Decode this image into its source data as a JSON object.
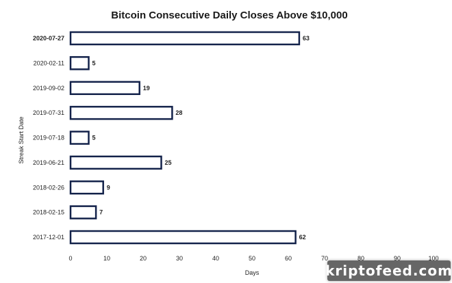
{
  "chart_data": {
    "type": "bar",
    "orientation": "horizontal",
    "title": "Bitcoin Consecutive Daily Closes Above $10,000",
    "xlabel": "Days",
    "ylabel": "Streak Start Date",
    "xlim": [
      0,
      100
    ],
    "xticks": [
      0,
      10,
      20,
      30,
      40,
      50,
      60,
      70,
      80,
      90,
      100
    ],
    "categories": [
      "2020-07-27",
      "2020-02-11",
      "2019-09-02",
      "2019-07-31",
      "2019-07-18",
      "2019-06-21",
      "2018-02-26",
      "2018-02-15",
      "2017-12-01"
    ],
    "values": [
      63,
      5,
      19,
      28,
      5,
      25,
      9,
      7,
      62
    ],
    "grid": false,
    "bar_fill": "#ffffff",
    "bar_outline": "#13224a"
  },
  "watermark": {
    "text": "kriptofeed.com"
  }
}
